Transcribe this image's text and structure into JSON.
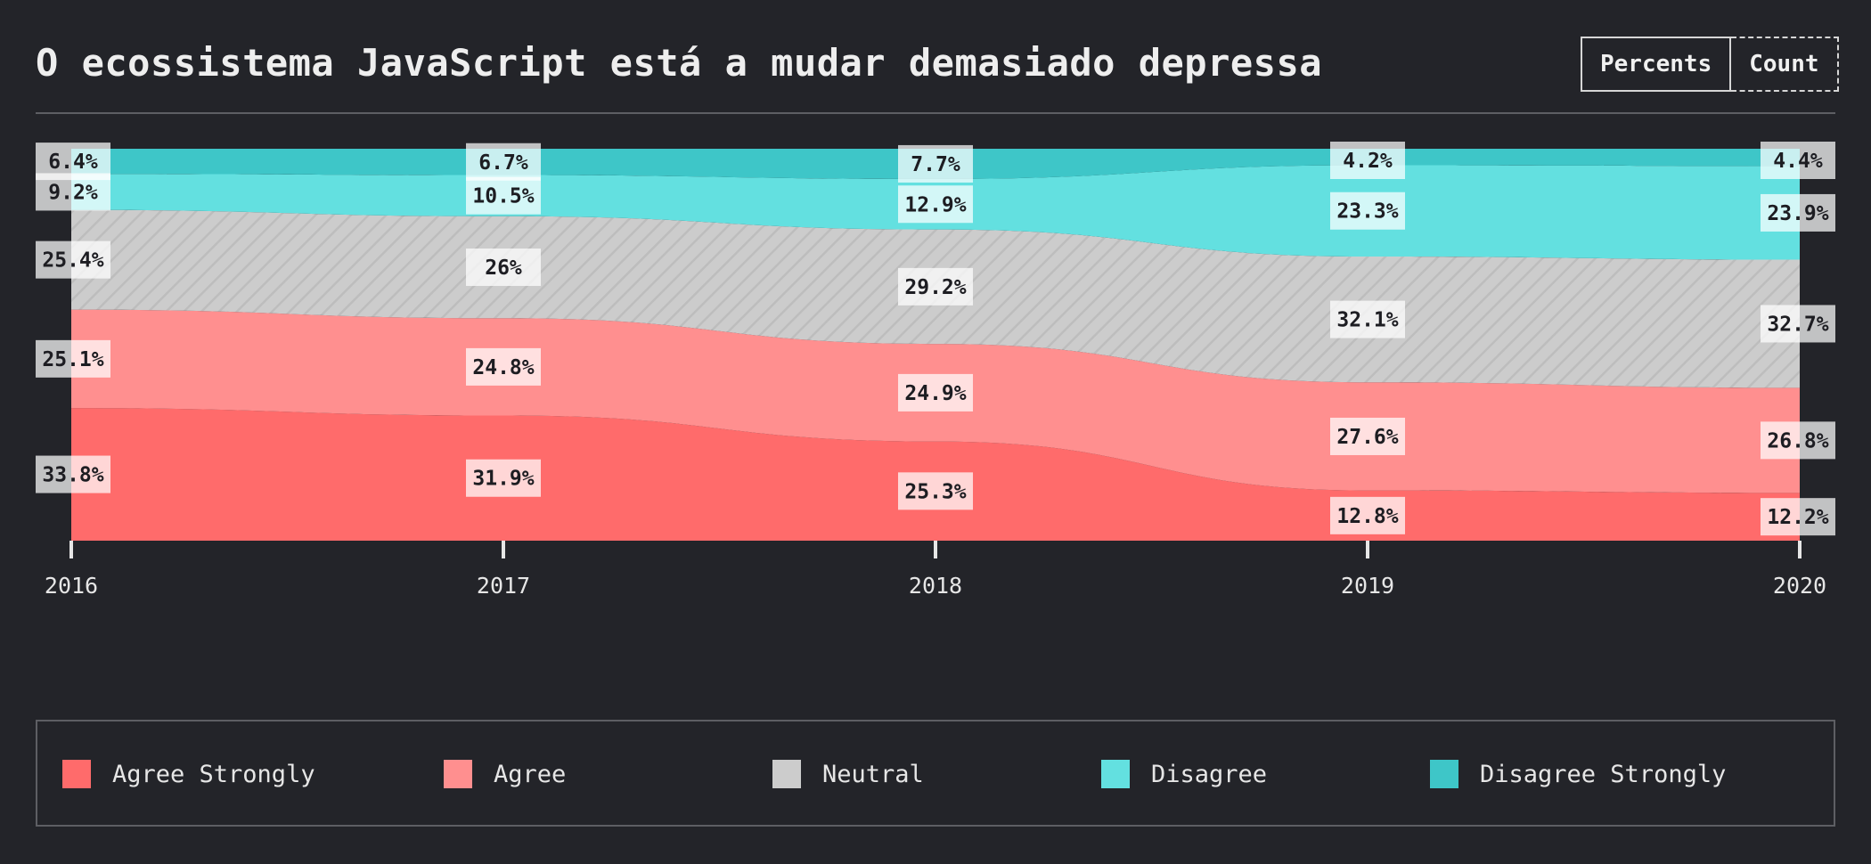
{
  "header": {
    "title": "O ecossistema JavaScript está a mudar demasiado depressa",
    "toggle": {
      "percents_label": "Percents",
      "count_label": "Count",
      "selected": "percents"
    }
  },
  "chart_data": {
    "type": "area",
    "stacked": true,
    "normalized": true,
    "title": "O ecossistema JavaScript está a mudar demasiado depressa",
    "categories": [
      "2016",
      "2017",
      "2018",
      "2019",
      "2020"
    ],
    "ylim": [
      0,
      100
    ],
    "legend_position": "bottom",
    "series": [
      {
        "name": "Agree Strongly",
        "values": [
          33.8,
          31.9,
          25.3,
          12.8,
          12.2
        ],
        "color": "#ff6b6b"
      },
      {
        "name": "Agree",
        "values": [
          25.1,
          24.8,
          24.9,
          27.6,
          26.8
        ],
        "color": "#ff8f8f"
      },
      {
        "name": "Neutral",
        "values": [
          25.4,
          26,
          29.2,
          32.1,
          32.7
        ],
        "color": "#cccccc"
      },
      {
        "name": "Disagree",
        "values": [
          9.2,
          10.5,
          12.9,
          23.3,
          23.9
        ],
        "color": "#63e0e0"
      },
      {
        "name": "Disagree Strongly",
        "values": [
          6.4,
          6.7,
          7.7,
          4.2,
          4.4
        ],
        "color": "#3ec6c8"
      }
    ]
  },
  "labels": {
    "2016": [
      "33.8%",
      "25.1%",
      "25.4%",
      "9.2%",
      "6.4%"
    ],
    "2017": [
      "31.9%",
      "24.8%",
      "26%",
      "10.5%",
      "6.7%"
    ],
    "2018": [
      "25.3%",
      "24.9%",
      "29.2%",
      "12.9%",
      "7.7%"
    ],
    "2019": [
      "12.8%",
      "27.6%",
      "32.1%",
      "23.3%",
      "4.2%"
    ],
    "2020": [
      "12.2%",
      "26.8%",
      "32.7%",
      "23.9%",
      "4.4%"
    ]
  },
  "legend": {
    "items": [
      {
        "label": "Agree Strongly",
        "color": "#ff6b6b"
      },
      {
        "label": "Agree",
        "color": "#ff8f8f"
      },
      {
        "label": "Neutral",
        "color": "#cccccc"
      },
      {
        "label": "Disagree",
        "color": "#63e0e0"
      },
      {
        "label": "Disagree Strongly",
        "color": "#3ec6c8"
      }
    ]
  }
}
